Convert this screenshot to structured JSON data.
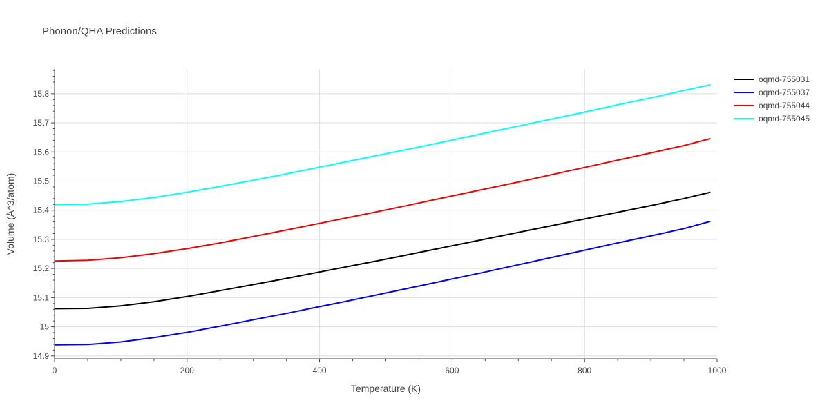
{
  "title": "Phonon/QHA Predictions",
  "chart_data": {
    "type": "line",
    "title": "Phonon/QHA Predictions",
    "xlabel": "Temperature (K)",
    "ylabel": "Volume (Å^3/atom)",
    "xlim": [
      0,
      1000
    ],
    "ylim": [
      14.89,
      15.885
    ],
    "xticks": [
      0,
      200,
      400,
      600,
      800,
      1000
    ],
    "yticks": [
      14.9,
      15,
      15.1,
      15.2,
      15.3,
      15.4,
      15.5,
      15.6,
      15.7,
      15.8
    ],
    "grid": true,
    "legend_position": "top-right",
    "x": [
      0,
      50,
      100,
      150,
      200,
      250,
      300,
      350,
      400,
      450,
      500,
      550,
      600,
      650,
      700,
      750,
      800,
      850,
      900,
      950,
      990
    ],
    "series": [
      {
        "name": "oqmd-755031",
        "color": "#000000",
        "values": [
          15.062,
          15.063,
          15.072,
          15.086,
          15.104,
          15.124,
          15.145,
          15.166,
          15.188,
          15.21,
          15.232,
          15.255,
          15.278,
          15.301,
          15.324,
          15.347,
          15.37,
          15.393,
          15.416,
          15.44,
          15.462
        ]
      },
      {
        "name": "oqmd-755037",
        "color": "#0000ee",
        "values": [
          14.938,
          14.939,
          14.948,
          14.963,
          14.981,
          15.002,
          15.024,
          15.046,
          15.069,
          15.092,
          15.116,
          15.14,
          15.164,
          15.188,
          15.213,
          15.238,
          15.263,
          15.288,
          15.312,
          15.337,
          15.362
        ]
      },
      {
        "name": "oqmd-755044",
        "color": "#ee0000",
        "values": [
          15.226,
          15.228,
          15.237,
          15.251,
          15.268,
          15.288,
          15.31,
          15.332,
          15.355,
          15.378,
          15.401,
          15.425,
          15.449,
          15.473,
          15.497,
          15.522,
          15.547,
          15.572,
          15.597,
          15.622,
          15.646
        ]
      },
      {
        "name": "oqmd-755045",
        "color": "#00ffff",
        "values": [
          15.42,
          15.421,
          15.43,
          15.444,
          15.462,
          15.482,
          15.503,
          15.525,
          15.548,
          15.571,
          15.594,
          15.617,
          15.641,
          15.665,
          15.689,
          15.713,
          15.737,
          15.762,
          15.786,
          15.811,
          15.831
        ]
      }
    ]
  }
}
